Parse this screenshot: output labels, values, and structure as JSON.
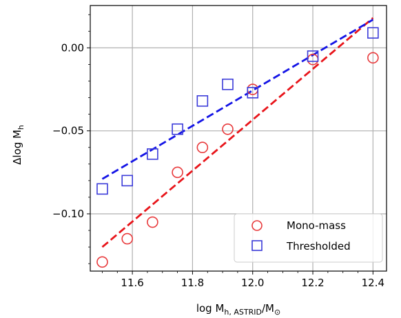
{
  "chart_data": {
    "type": "scatter",
    "xlabel_main": "log M",
    "xlabel_sub": "h, ASTRID",
    "xlabel_tail": "/M",
    "xlabel_tail_sub": "⊙",
    "ylabel_main": "Δlog M",
    "ylabel_sub": "h",
    "xlim": [
      11.46,
      12.445
    ],
    "ylim": [
      -0.1345,
      0.0255
    ],
    "grid": true,
    "legend_position": "lower-right",
    "x_ticks": [
      {
        "value": 11.6,
        "label": "11.6"
      },
      {
        "value": 11.8,
        "label": "11.8"
      },
      {
        "value": 12.0,
        "label": "12.0"
      },
      {
        "value": 12.2,
        "label": "12.2"
      },
      {
        "value": 12.4,
        "label": "12.4"
      }
    ],
    "y_ticks": [
      {
        "value": 0.0,
        "label": "0.00"
      },
      {
        "value": -0.05,
        "label": "−0.05"
      },
      {
        "value": -0.1,
        "label": "−0.10"
      }
    ],
    "series": [
      {
        "name": "Mono-mass",
        "marker": "circle",
        "color": "#e8393b",
        "points": [
          {
            "x": 11.5,
            "y": -0.129
          },
          {
            "x": 11.583,
            "y": -0.115
          },
          {
            "x": 11.667,
            "y": -0.105
          },
          {
            "x": 11.75,
            "y": -0.075
          },
          {
            "x": 11.833,
            "y": -0.06
          },
          {
            "x": 11.917,
            "y": -0.049
          },
          {
            "x": 12.0,
            "y": -0.025
          },
          {
            "x": 12.2,
            "y": -0.007
          },
          {
            "x": 12.4,
            "y": -0.006
          }
        ],
        "fit": {
          "color": "#e8141a",
          "x": [
            11.5,
            12.4
          ],
          "y": [
            -0.12,
            0.018
          ]
        }
      },
      {
        "name": "Thresholded",
        "marker": "square",
        "color": "#3b3bd9",
        "points": [
          {
            "x": 11.5,
            "y": -0.085
          },
          {
            "x": 11.583,
            "y": -0.08
          },
          {
            "x": 11.667,
            "y": -0.064
          },
          {
            "x": 11.75,
            "y": -0.049
          },
          {
            "x": 11.833,
            "y": -0.032
          },
          {
            "x": 11.917,
            "y": -0.022
          },
          {
            "x": 12.0,
            "y": -0.027
          },
          {
            "x": 12.2,
            "y": -0.005
          },
          {
            "x": 12.4,
            "y": 0.009
          }
        ],
        "fit": {
          "color": "#1414e6",
          "x": [
            11.5,
            12.4
          ],
          "y": [
            -0.079,
            0.017
          ]
        }
      }
    ]
  }
}
